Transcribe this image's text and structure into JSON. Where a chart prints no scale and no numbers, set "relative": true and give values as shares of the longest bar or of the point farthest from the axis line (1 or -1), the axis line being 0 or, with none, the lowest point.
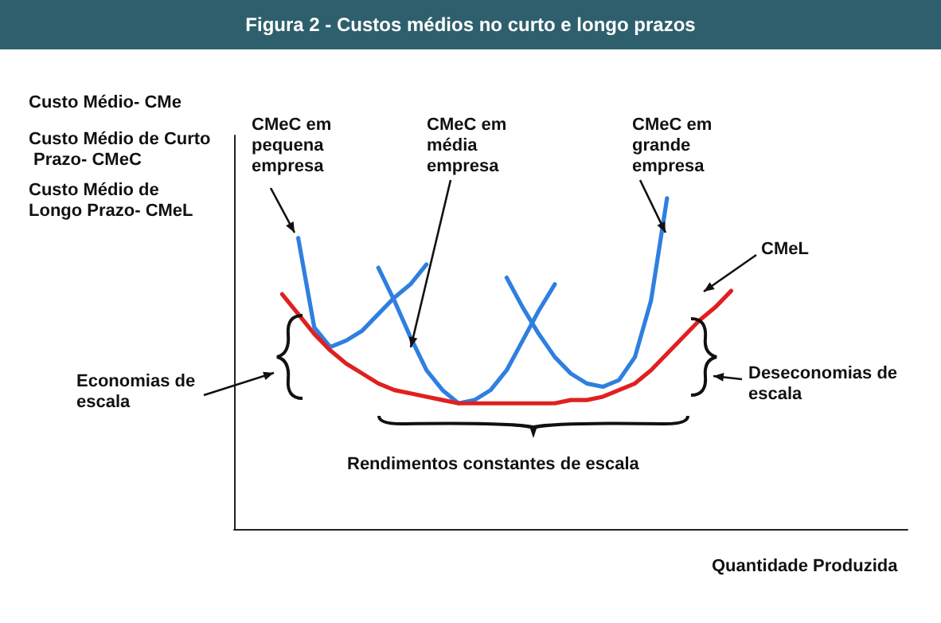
{
  "chart_data": {
    "type": "line",
    "relative": true,
    "marker": "none",
    "title": "Figura 2 - Custos médios no curto e longo prazos",
    "xlabel": "Quantidade Produzida",
    "categories": [
      null,
      null,
      null,
      null,
      null,
      null,
      null,
      null,
      null,
      null,
      null,
      null,
      null,
      null,
      null,
      null,
      null,
      null,
      null,
      null,
      null,
      null,
      null,
      null,
      null,
      null,
      null,
      null,
      null,
      null,
      null,
      null,
      null,
      null,
      null,
      null,
      null,
      null,
      null,
      null,
      null,
      null,
      null
    ],
    "series": [
      {
        "name": "CMeC em pequena empresa",
        "color": "#2f7fe0",
        "values": [
          null,
          null,
          null,
          null,
          0.88,
          0.61,
          0.55,
          0.57,
          0.6,
          0.65,
          0.7,
          0.74,
          0.8,
          null,
          null,
          null,
          null,
          null,
          null,
          null,
          null,
          null,
          null,
          null,
          null,
          null,
          null,
          null,
          null,
          null,
          null,
          null,
          null,
          null,
          null,
          null,
          null,
          null,
          null,
          null,
          null,
          null,
          null
        ]
      },
      {
        "name": "CMeC em média empresa",
        "color": "#2f7fe0",
        "values": [
          null,
          null,
          null,
          null,
          null,
          null,
          null,
          null,
          null,
          0.79,
          0.69,
          0.58,
          0.48,
          0.42,
          0.38,
          0.39,
          0.42,
          0.48,
          0.57,
          0.66,
          0.74,
          null,
          null,
          null,
          null,
          null,
          null,
          null,
          null,
          null,
          null,
          null,
          null,
          null,
          null,
          null,
          null,
          null,
          null,
          null,
          null,
          null,
          null
        ]
      },
      {
        "name": "CMeC em grande empresa",
        "color": "#2f7fe0",
        "values": [
          null,
          null,
          null,
          null,
          null,
          null,
          null,
          null,
          null,
          null,
          null,
          null,
          null,
          null,
          null,
          null,
          null,
          0.76,
          0.67,
          0.59,
          0.52,
          0.47,
          0.44,
          0.43,
          0.45,
          0.52,
          0.69,
          1.0,
          null,
          null,
          null,
          null,
          null,
          null,
          null,
          null,
          null,
          null,
          null,
          null,
          null,
          null,
          null
        ]
      },
      {
        "name": "CMeL",
        "color": "#e02020",
        "values": [
          null,
          null,
          null,
          0.71,
          0.65,
          0.59,
          0.54,
          0.5,
          0.47,
          0.44,
          0.42,
          0.41,
          0.4,
          0.39,
          0.38,
          0.38,
          0.38,
          0.38,
          0.38,
          0.38,
          0.38,
          0.39,
          0.39,
          0.4,
          0.42,
          0.44,
          0.48,
          0.53,
          0.58,
          0.63,
          0.67,
          0.72,
          null,
          null,
          null,
          null,
          null,
          null,
          null,
          null,
          null,
          null,
          null
        ]
      }
    ],
    "annotations": [
      "Custo Médio- CMe",
      "Custo Médio de Curto Prazo- CMeC",
      "Custo Médio de Longo Prazo- CMeL",
      "Economias de escala",
      "Deseconomias de escala",
      "Rendimentos constantes de escala"
    ]
  }
}
